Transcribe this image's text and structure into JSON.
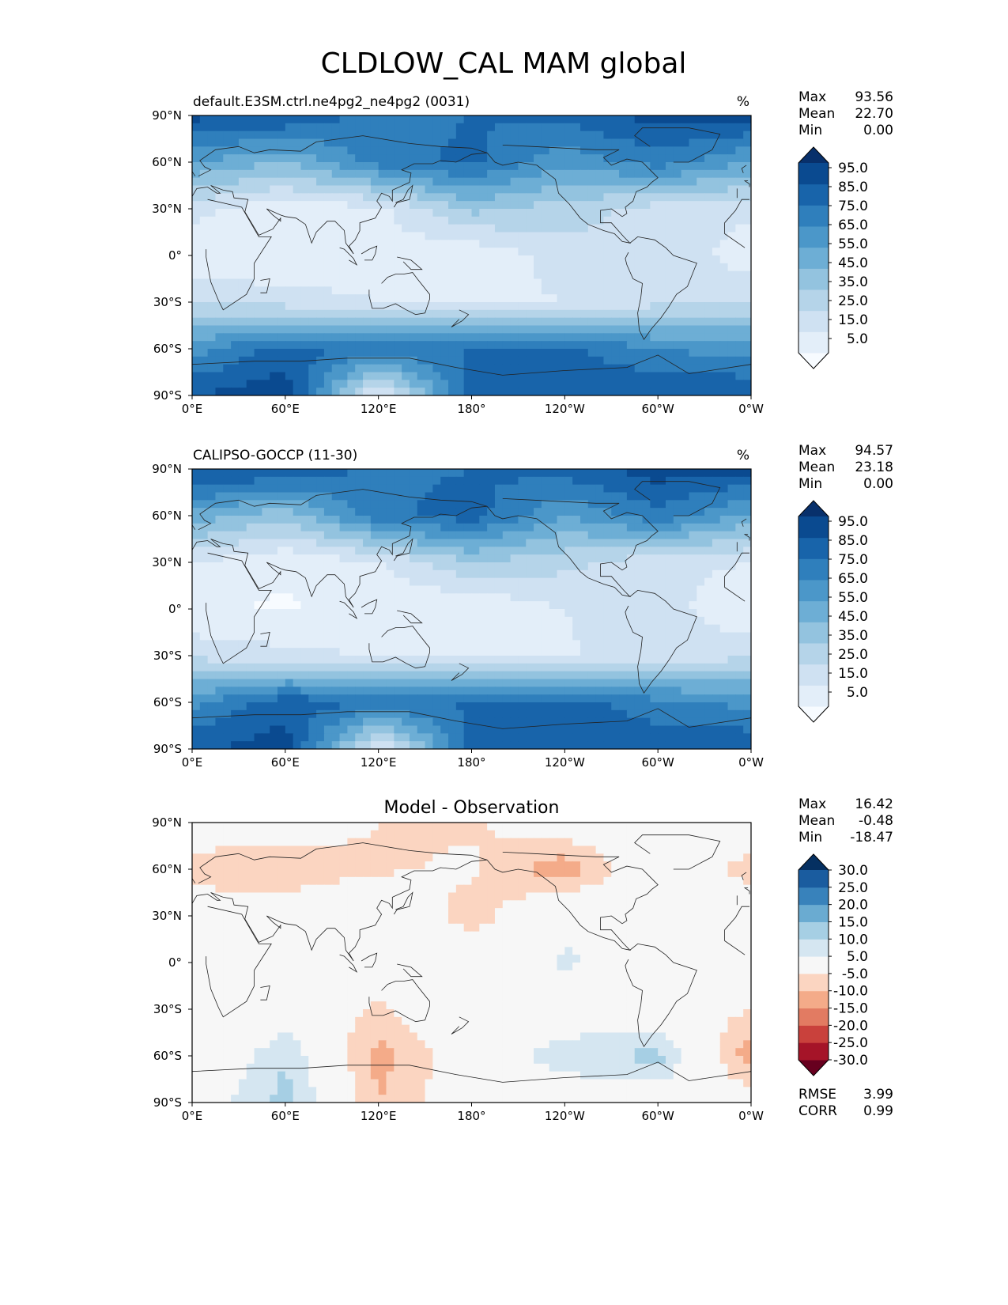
{
  "figure_title": "CLDLOW_CAL MAM global",
  "chart_data": [
    {
      "type": "heatmap",
      "title": "default.E3SM.ctrl.ne4pg2_ne4pg2 (0031)",
      "units": "%",
      "x_ticks": [
        "0°E",
        "60°E",
        "120°E",
        "180°",
        "120°W",
        "60°W",
        "0°W"
      ],
      "y_ticks": [
        "90°N",
        "60°N",
        "30°N",
        "0°",
        "30°S",
        "60°S",
        "90°S"
      ],
      "stats": [
        {
          "label": "Max",
          "value": "93.56"
        },
        {
          "label": "Mean",
          "value": "22.70"
        },
        {
          "label": "Min",
          "value": "0.00"
        }
      ],
      "colorbar": {
        "ticks": [
          "95.0",
          "85.0",
          "75.0",
          "65.0",
          "55.0",
          "45.0",
          "35.0",
          "25.0",
          "15.0",
          "5.0"
        ],
        "colors": [
          "#f7fbff",
          "#e3eef9",
          "#cfe1f2",
          "#b5d4e9",
          "#93c3df",
          "#6daed5",
          "#4b97c9",
          "#2f7fbc",
          "#1864aa",
          "#0a4a90",
          "#08306b"
        ]
      },
      "field": {
        "lat": [
          90,
          60,
          30,
          0,
          -30,
          -60,
          -90
        ],
        "lon": [
          0,
          60,
          120,
          180,
          240,
          300,
          360
        ],
        "values": [
          [
            88,
            85,
            70,
            75,
            78,
            90,
            88
          ],
          [
            55,
            45,
            70,
            78,
            58,
            70,
            55
          ],
          [
            18,
            8,
            12,
            38,
            30,
            20,
            18
          ],
          [
            8,
            5,
            10,
            6,
            20,
            25,
            8
          ],
          [
            25,
            20,
            15,
            12,
            15,
            22,
            25
          ],
          [
            60,
            80,
            72,
            75,
            78,
            65,
            60
          ],
          [
            85,
            92,
            10,
            80,
            82,
            85,
            85
          ]
        ]
      }
    },
    {
      "type": "heatmap",
      "title": "CALIPSO-GOCCP (11-30)",
      "units": "%",
      "x_ticks": [
        "0°E",
        "60°E",
        "120°E",
        "180°",
        "120°W",
        "60°W",
        "0°W"
      ],
      "y_ticks": [
        "90°N",
        "60°N",
        "30°N",
        "0°",
        "30°S",
        "60°S",
        "90°S"
      ],
      "stats": [
        {
          "label": "Max",
          "value": "94.57"
        },
        {
          "label": "Mean",
          "value": "23.18"
        },
        {
          "label": "Min",
          "value": "0.00"
        }
      ],
      "colorbar": {
        "ticks": [
          "95.0",
          "85.0",
          "75.0",
          "65.0",
          "55.0",
          "45.0",
          "35.0",
          "25.0",
          "15.0",
          "5.0"
        ],
        "colors": [
          "#f7fbff",
          "#e3eef9",
          "#cfe1f2",
          "#b5d4e9",
          "#93c3df",
          "#6daed5",
          "#4b97c9",
          "#2f7fbc",
          "#1864aa",
          "#0a4a90",
          "#08306b"
        ]
      },
      "field": {
        "lat": [
          90,
          60,
          30,
          0,
          -30,
          -60,
          -90
        ],
        "lon": [
          0,
          60,
          120,
          180,
          240,
          300,
          360
        ],
        "values": [
          [
            88,
            85,
            72,
            75,
            80,
            90,
            88
          ],
          [
            52,
            38,
            72,
            80,
            55,
            72,
            52
          ],
          [
            15,
            6,
            14,
            35,
            28,
            18,
            15
          ],
          [
            6,
            4,
            8,
            5,
            15,
            20,
            6
          ],
          [
            22,
            18,
            14,
            10,
            14,
            20,
            22
          ],
          [
            62,
            82,
            74,
            76,
            80,
            68,
            62
          ],
          [
            84,
            90,
            12,
            78,
            80,
            84,
            84
          ]
        ]
      }
    },
    {
      "type": "heatmap",
      "title": "Model - Observation",
      "units": "",
      "x_ticks": [
        "0°E",
        "60°E",
        "120°E",
        "180°",
        "120°W",
        "60°W",
        "0°W"
      ],
      "y_ticks": [
        "90°N",
        "60°N",
        "30°N",
        "0°",
        "30°S",
        "60°S",
        "90°S"
      ],
      "stats": [
        {
          "label": "Max",
          "value": "16.42"
        },
        {
          "label": "Mean",
          "value": "-0.48"
        },
        {
          "label": "Min",
          "value": "-18.47"
        }
      ],
      "extra_stats": [
        {
          "label": "RMSE",
          "value": "3.99"
        },
        {
          "label": "CORR",
          "value": "0.99"
        }
      ],
      "colorbar": {
        "ticks": [
          "30.0",
          "25.0",
          "20.0",
          "15.0",
          "10.0",
          "5.0",
          "-5.0",
          "-10.0",
          "-15.0",
          "-20.0",
          "-25.0",
          "-30.0"
        ],
        "colors": [
          "#67001f",
          "#a51428",
          "#c9413c",
          "#e27b62",
          "#f4ab89",
          "#fbd5c1",
          "#f7f7f7",
          "#d5e6f1",
          "#a6cfe4",
          "#6aabd1",
          "#3882bb",
          "#1a5c9f",
          "#053061"
        ]
      },
      "field": {
        "lat": [
          90,
          60,
          30,
          0,
          -30,
          -60,
          -90
        ],
        "lon": [
          0,
          60,
          120,
          180,
          240,
          300,
          360
        ],
        "values": [
          [
            0,
            0,
            -5,
            -6,
            0,
            0,
            0
          ],
          [
            -8,
            -10,
            -6,
            -4,
            -14,
            3,
            -8
          ],
          [
            0,
            0,
            4,
            -8,
            3,
            2,
            0
          ],
          [
            0,
            0,
            0,
            0,
            6,
            0,
            0
          ],
          [
            -5,
            0,
            -6,
            3,
            0,
            0,
            -5
          ],
          [
            -5,
            10,
            -12,
            0,
            8,
            12,
            -14
          ],
          [
            0,
            12,
            -10,
            0,
            0,
            0,
            0
          ]
        ]
      }
    }
  ]
}
